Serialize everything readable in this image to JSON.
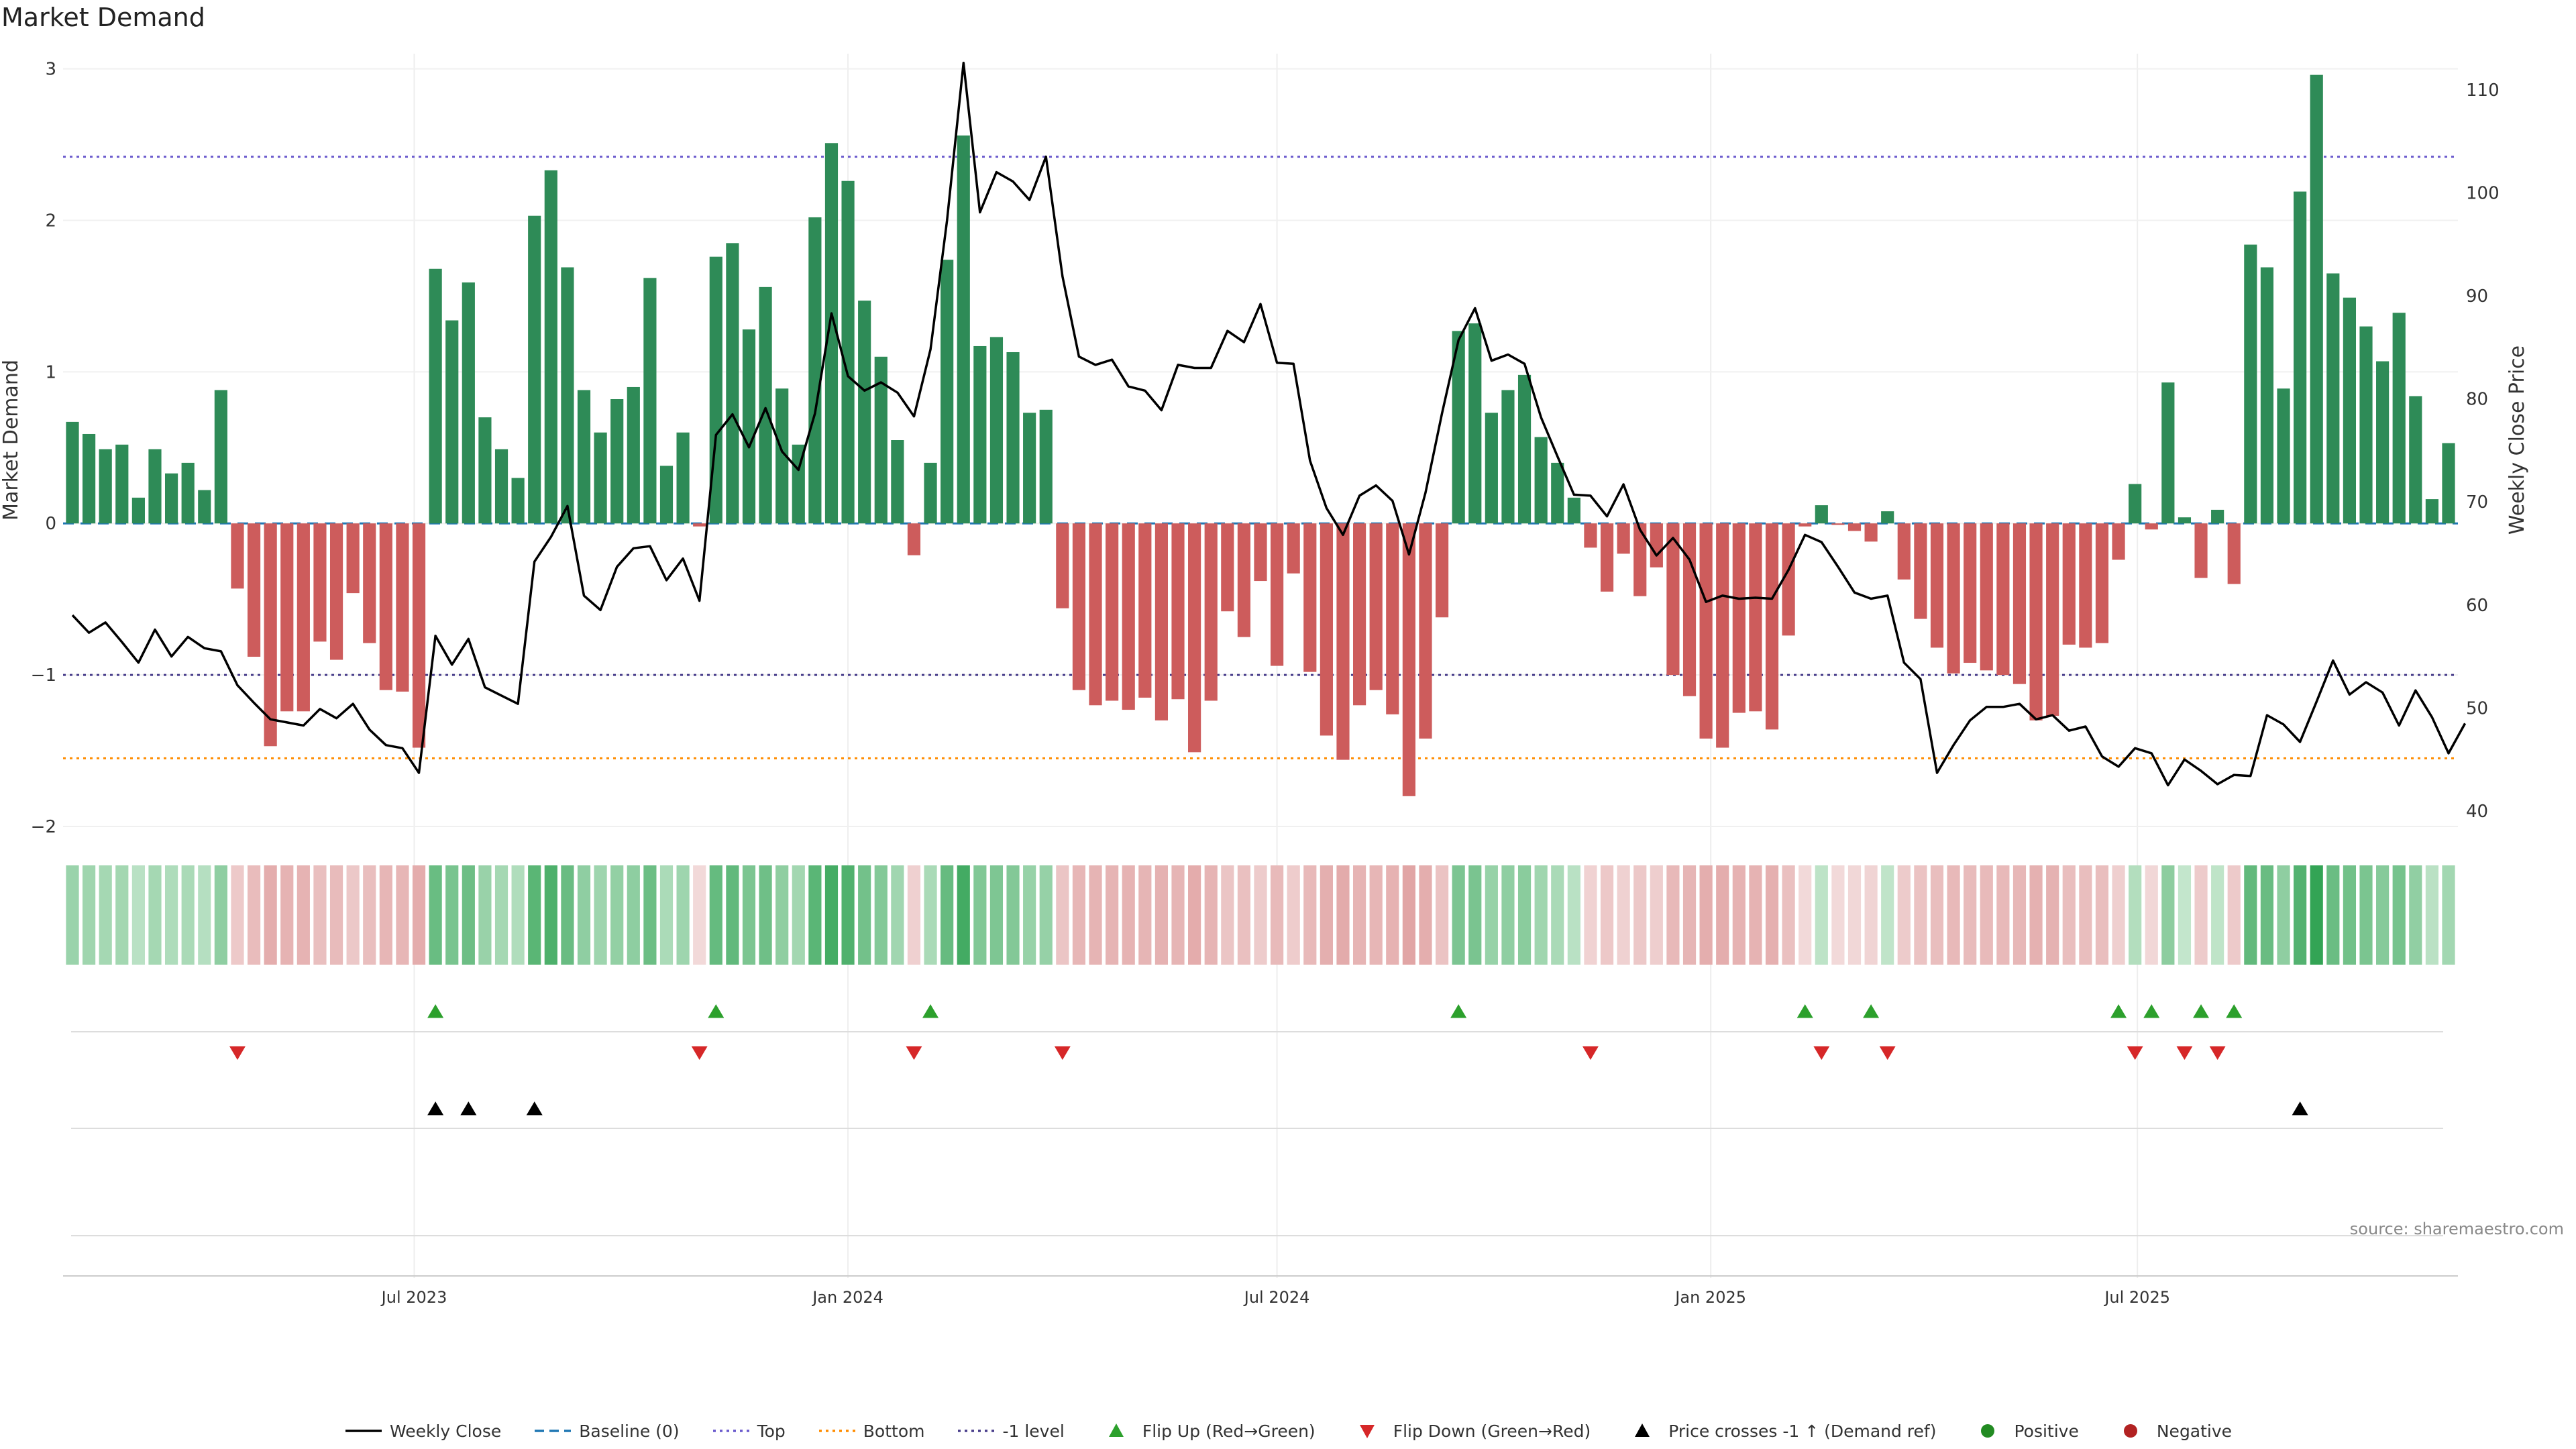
{
  "chart_data": {
    "title": "Market Demand",
    "source": "source: sharemaestro.com",
    "type": "bar",
    "x_start": "2023-02-06",
    "x_step_days": 7,
    "ylabel": "Market Demand",
    "y2label": "Weekly Close Price",
    "ylim": [
      -2.0,
      3.1
    ],
    "y2lim": [
      38.5,
      113.5
    ],
    "yticks": [
      {
        "v": 3,
        "label": "3"
      },
      {
        "v": 2,
        "label": "2"
      },
      {
        "v": 1,
        "label": "1"
      },
      {
        "v": 0,
        "label": "0"
      },
      {
        "v": -1,
        "label": "−1"
      },
      {
        "v": -2,
        "label": "−2"
      }
    ],
    "y2ticks": [
      {
        "v": 110,
        "label": "110"
      },
      {
        "v": 100,
        "label": "100"
      },
      {
        "v": 90,
        "label": "90"
      },
      {
        "v": 80,
        "label": "80"
      },
      {
        "v": 70,
        "label": "70"
      },
      {
        "v": 60,
        "label": "60"
      },
      {
        "v": 50,
        "label": "50"
      },
      {
        "v": 40,
        "label": "40"
      }
    ],
    "xticks": [
      {
        "date": "2023-07-01",
        "label": "Jul 2023"
      },
      {
        "date": "2024-01-01",
        "label": "Jan 2024"
      },
      {
        "date": "2024-07-01",
        "label": "Jul 2024"
      },
      {
        "date": "2025-01-01",
        "label": "Jan 2025"
      },
      {
        "date": "2025-07-01",
        "label": "Jul 2025"
      }
    ],
    "levels": {
      "top": 2.42,
      "bottom": -1.55,
      "minus_one": -1.0,
      "baseline": 0
    },
    "demand": [
      0.67,
      0.59,
      0.49,
      0.52,
      0.17,
      0.49,
      0.33,
      0.4,
      0.22,
      0.88,
      -0.43,
      -0.88,
      -1.47,
      -1.24,
      -1.24,
      -0.78,
      -0.9,
      -0.46,
      -0.79,
      -1.1,
      -1.11,
      -1.48,
      1.68,
      1.34,
      1.59,
      0.7,
      0.49,
      0.3,
      2.03,
      2.33,
      1.69,
      0.88,
      0.6,
      0.82,
      0.9,
      1.62,
      0.38,
      0.6,
      -0.02,
      1.76,
      1.85,
      1.28,
      1.56,
      0.89,
      0.52,
      2.02,
      2.51,
      2.26,
      1.47,
      1.1,
      0.55,
      -0.21,
      0.4,
      1.74,
      2.56,
      1.17,
      1.23,
      1.13,
      0.73,
      0.75,
      -0.56,
      -1.1,
      -1.2,
      -1.17,
      -1.23,
      -1.15,
      -1.3,
      -1.16,
      -1.51,
      -1.17,
      -0.58,
      -0.75,
      -0.38,
      -0.94,
      -0.33,
      -0.98,
      -1.4,
      -1.56,
      -1.2,
      -1.1,
      -1.26,
      -1.8,
      -1.42,
      -0.62,
      1.27,
      1.32,
      0.73,
      0.88,
      0.98,
      0.57,
      0.4,
      0.17,
      -0.16,
      -0.45,
      -0.2,
      -0.48,
      -0.29,
      -1.0,
      -1.14,
      -1.42,
      -1.48,
      -1.25,
      -1.24,
      -1.36,
      -0.74,
      -0.02,
      0.12,
      -0.01,
      -0.05,
      -0.12,
      0.08,
      -0.37,
      -0.63,
      -0.82,
      -0.99,
      -0.92,
      -0.97,
      -1.0,
      -1.06,
      -1.3,
      -1.27,
      -0.8,
      -0.82,
      -0.79,
      -0.24,
      0.26,
      -0.04,
      0.93,
      0.04,
      -0.36,
      0.09,
      -0.4,
      1.84,
      1.69,
      0.89,
      2.19,
      2.96,
      1.65,
      1.49,
      1.3,
      1.07,
      1.39,
      0.84,
      0.16,
      0.53
    ],
    "close": [
      59.0,
      57.3,
      58.3,
      56.4,
      54.4,
      57.6,
      55.0,
      56.9,
      55.8,
      55.5,
      52.2,
      50.5,
      48.9,
      48.6,
      48.3,
      49.9,
      49.0,
      50.4,
      47.9,
      46.4,
      46.1,
      43.7,
      57.0,
      54.2,
      56.7,
      52.0,
      51.2,
      50.4,
      64.2,
      66.6,
      69.6,
      60.9,
      59.5,
      63.7,
      65.5,
      65.7,
      62.4,
      64.5,
      60.4,
      76.5,
      78.5,
      75.3,
      79.1,
      74.9,
      73.1,
      78.6,
      88.3,
      82.2,
      80.8,
      81.6,
      80.6,
      78.3,
      84.8,
      97.3,
      112.6,
      98.1,
      102.0,
      101.1,
      99.3,
      103.5,
      91.9,
      84.1,
      83.3,
      83.8,
      81.2,
      80.8,
      78.9,
      83.3,
      83.0,
      83.0,
      86.6,
      85.5,
      89.2,
      83.5,
      83.4,
      74.0,
      69.4,
      66.8,
      70.6,
      71.6,
      70.1,
      64.9,
      70.9,
      78.6,
      85.7,
      88.8,
      83.7,
      84.3,
      83.4,
      78.2,
      74.4,
      70.7,
      70.6,
      68.6,
      71.7,
      67.3,
      64.8,
      66.5,
      64.4,
      60.3,
      60.9,
      60.6,
      60.7,
      60.6,
      63.4,
      66.8,
      66.1,
      63.7,
      61.2,
      60.6,
      60.9,
      54.4,
      52.8,
      43.7,
      46.4,
      48.8,
      50.1,
      50.1,
      50.4,
      48.9,
      49.3,
      47.8,
      48.2,
      45.3,
      44.3,
      46.1,
      45.6,
      42.5,
      45.0,
      43.9,
      42.6,
      43.5,
      43.4,
      49.3,
      48.4,
      46.7,
      50.6,
      54.6,
      51.3,
      52.5,
      51.5,
      48.3,
      51.7,
      49.1,
      45.6,
      48.5
    ],
    "flip_up": [
      22,
      39,
      52,
      84,
      105,
      109,
      124,
      126,
      129,
      131
    ],
    "flip_down": [
      10,
      38,
      51,
      60,
      92,
      106,
      110,
      125,
      128,
      130
    ],
    "price_cross": [
      22,
      24,
      28,
      135
    ],
    "colors": {
      "pos_bar": "#2e8b57",
      "neg_bar": "#cd5c5c",
      "close": "#000000",
      "baseline": "#1f77b4",
      "top": "#6a5acd",
      "bottom": "#ff8c00",
      "minus_one": "#483d8b",
      "flip_up": "#2ca02c",
      "flip_down": "#d62728",
      "cross": "#000000",
      "positive": "#228b22",
      "negative": "#b22222"
    },
    "legend_position": "bottom-center",
    "legend": [
      {
        "key": "close",
        "label": "Weekly Close"
      },
      {
        "key": "baseline",
        "label": "Baseline (0)"
      },
      {
        "key": "top",
        "label": "Top"
      },
      {
        "key": "bottom",
        "label": "Bottom"
      },
      {
        "key": "minus_one",
        "label": "-1 level"
      },
      {
        "key": "flip_up",
        "label": "Flip Up (Red→Green)"
      },
      {
        "key": "flip_down",
        "label": "Flip Down (Green→Red)"
      },
      {
        "key": "cross",
        "label": "Price crosses -1 ↑ (Demand ref)"
      },
      {
        "key": "positive",
        "label": "Positive"
      },
      {
        "key": "negative",
        "label": "Negative"
      }
    ]
  }
}
